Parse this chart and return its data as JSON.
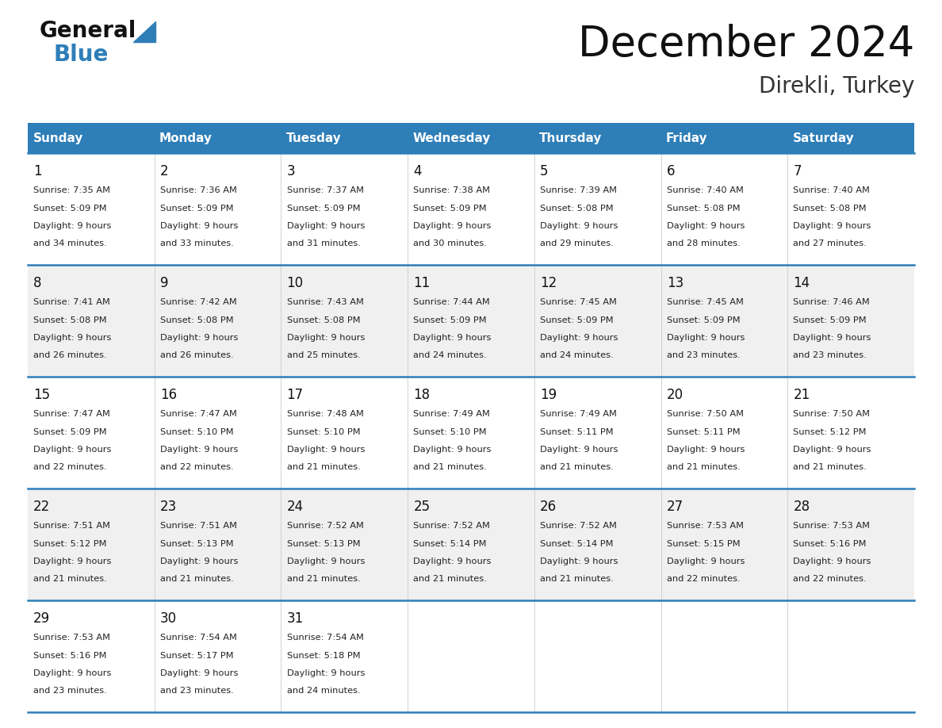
{
  "title": "December 2024",
  "subtitle": "Direkli, Turkey",
  "header_color": "#2E7EB8",
  "header_text_color": "#FFFFFF",
  "day_names": [
    "Sunday",
    "Monday",
    "Tuesday",
    "Wednesday",
    "Thursday",
    "Friday",
    "Saturday"
  ],
  "background_color": "#FFFFFF",
  "separator_color": "#2E7EB8",
  "cell_bg_odd": "#F0F0F0",
  "cell_bg_even": "#FFFFFF",
  "weeks": [
    [
      {
        "day": 1,
        "sunrise": "7:35 AM",
        "sunset": "5:09 PM",
        "daylight_hours": 9,
        "daylight_minutes": 34
      },
      {
        "day": 2,
        "sunrise": "7:36 AM",
        "sunset": "5:09 PM",
        "daylight_hours": 9,
        "daylight_minutes": 33
      },
      {
        "day": 3,
        "sunrise": "7:37 AM",
        "sunset": "5:09 PM",
        "daylight_hours": 9,
        "daylight_minutes": 31
      },
      {
        "day": 4,
        "sunrise": "7:38 AM",
        "sunset": "5:09 PM",
        "daylight_hours": 9,
        "daylight_minutes": 30
      },
      {
        "day": 5,
        "sunrise": "7:39 AM",
        "sunset": "5:08 PM",
        "daylight_hours": 9,
        "daylight_minutes": 29
      },
      {
        "day": 6,
        "sunrise": "7:40 AM",
        "sunset": "5:08 PM",
        "daylight_hours": 9,
        "daylight_minutes": 28
      },
      {
        "day": 7,
        "sunrise": "7:40 AM",
        "sunset": "5:08 PM",
        "daylight_hours": 9,
        "daylight_minutes": 27
      }
    ],
    [
      {
        "day": 8,
        "sunrise": "7:41 AM",
        "sunset": "5:08 PM",
        "daylight_hours": 9,
        "daylight_minutes": 26
      },
      {
        "day": 9,
        "sunrise": "7:42 AM",
        "sunset": "5:08 PM",
        "daylight_hours": 9,
        "daylight_minutes": 26
      },
      {
        "day": 10,
        "sunrise": "7:43 AM",
        "sunset": "5:08 PM",
        "daylight_hours": 9,
        "daylight_minutes": 25
      },
      {
        "day": 11,
        "sunrise": "7:44 AM",
        "sunset": "5:09 PM",
        "daylight_hours": 9,
        "daylight_minutes": 24
      },
      {
        "day": 12,
        "sunrise": "7:45 AM",
        "sunset": "5:09 PM",
        "daylight_hours": 9,
        "daylight_minutes": 24
      },
      {
        "day": 13,
        "sunrise": "7:45 AM",
        "sunset": "5:09 PM",
        "daylight_hours": 9,
        "daylight_minutes": 23
      },
      {
        "day": 14,
        "sunrise": "7:46 AM",
        "sunset": "5:09 PM",
        "daylight_hours": 9,
        "daylight_minutes": 23
      }
    ],
    [
      {
        "day": 15,
        "sunrise": "7:47 AM",
        "sunset": "5:09 PM",
        "daylight_hours": 9,
        "daylight_minutes": 22
      },
      {
        "day": 16,
        "sunrise": "7:47 AM",
        "sunset": "5:10 PM",
        "daylight_hours": 9,
        "daylight_minutes": 22
      },
      {
        "day": 17,
        "sunrise": "7:48 AM",
        "sunset": "5:10 PM",
        "daylight_hours": 9,
        "daylight_minutes": 21
      },
      {
        "day": 18,
        "sunrise": "7:49 AM",
        "sunset": "5:10 PM",
        "daylight_hours": 9,
        "daylight_minutes": 21
      },
      {
        "day": 19,
        "sunrise": "7:49 AM",
        "sunset": "5:11 PM",
        "daylight_hours": 9,
        "daylight_minutes": 21
      },
      {
        "day": 20,
        "sunrise": "7:50 AM",
        "sunset": "5:11 PM",
        "daylight_hours": 9,
        "daylight_minutes": 21
      },
      {
        "day": 21,
        "sunrise": "7:50 AM",
        "sunset": "5:12 PM",
        "daylight_hours": 9,
        "daylight_minutes": 21
      }
    ],
    [
      {
        "day": 22,
        "sunrise": "7:51 AM",
        "sunset": "5:12 PM",
        "daylight_hours": 9,
        "daylight_minutes": 21
      },
      {
        "day": 23,
        "sunrise": "7:51 AM",
        "sunset": "5:13 PM",
        "daylight_hours": 9,
        "daylight_minutes": 21
      },
      {
        "day": 24,
        "sunrise": "7:52 AM",
        "sunset": "5:13 PM",
        "daylight_hours": 9,
        "daylight_minutes": 21
      },
      {
        "day": 25,
        "sunrise": "7:52 AM",
        "sunset": "5:14 PM",
        "daylight_hours": 9,
        "daylight_minutes": 21
      },
      {
        "day": 26,
        "sunrise": "7:52 AM",
        "sunset": "5:14 PM",
        "daylight_hours": 9,
        "daylight_minutes": 21
      },
      {
        "day": 27,
        "sunrise": "7:53 AM",
        "sunset": "5:15 PM",
        "daylight_hours": 9,
        "daylight_minutes": 22
      },
      {
        "day": 28,
        "sunrise": "7:53 AM",
        "sunset": "5:16 PM",
        "daylight_hours": 9,
        "daylight_minutes": 22
      }
    ],
    [
      {
        "day": 29,
        "sunrise": "7:53 AM",
        "sunset": "5:16 PM",
        "daylight_hours": 9,
        "daylight_minutes": 23
      },
      {
        "day": 30,
        "sunrise": "7:54 AM",
        "sunset": "5:17 PM",
        "daylight_hours": 9,
        "daylight_minutes": 23
      },
      {
        "day": 31,
        "sunrise": "7:54 AM",
        "sunset": "5:18 PM",
        "daylight_hours": 9,
        "daylight_minutes": 24
      },
      null,
      null,
      null,
      null
    ]
  ],
  "logo_general_color": "#111111",
  "logo_blue_color": "#2E7EB8",
  "logo_triangle_color": "#2E7EB8"
}
